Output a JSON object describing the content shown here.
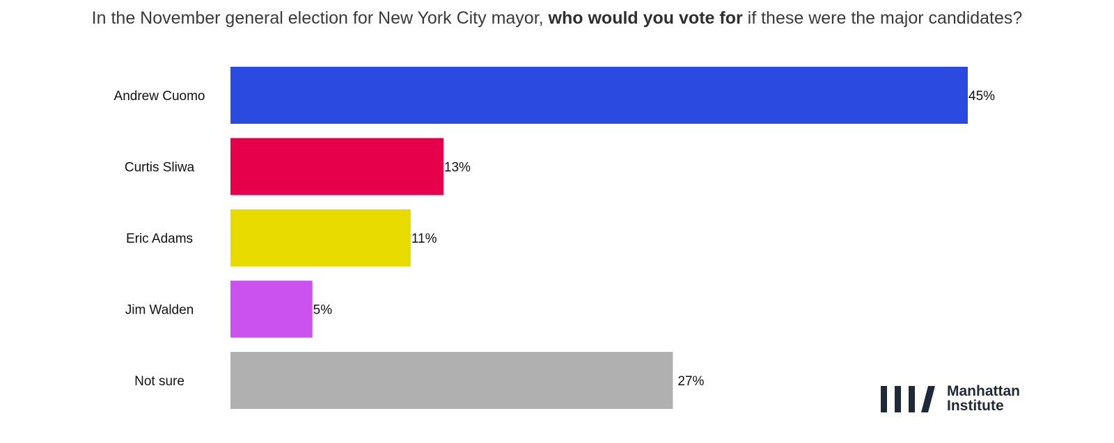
{
  "title": {
    "pre": "In the November general election for New York City mayor, ",
    "bold": "who would you vote for",
    "post": " if these were the major candidates?"
  },
  "chart_data": {
    "type": "bar",
    "orientation": "horizontal",
    "categories": [
      "Andrew Cuomo",
      "Curtis Sliwa",
      "Eric Adams",
      "Jim Walden",
      "Not sure"
    ],
    "values": [
      45,
      13,
      11,
      5,
      27
    ],
    "value_labels": [
      "45%",
      "13%",
      "11%",
      "5%",
      "27%"
    ],
    "colors": [
      "#2b4be0",
      "#e6004c",
      "#e8db00",
      "#cc52f0",
      "#b0b0b0"
    ],
    "xlim": [
      0,
      45
    ],
    "grid": false,
    "legend": "none"
  },
  "logo": {
    "line1": "Manhattan",
    "line2": "Institute",
    "color": "#1f2937"
  }
}
